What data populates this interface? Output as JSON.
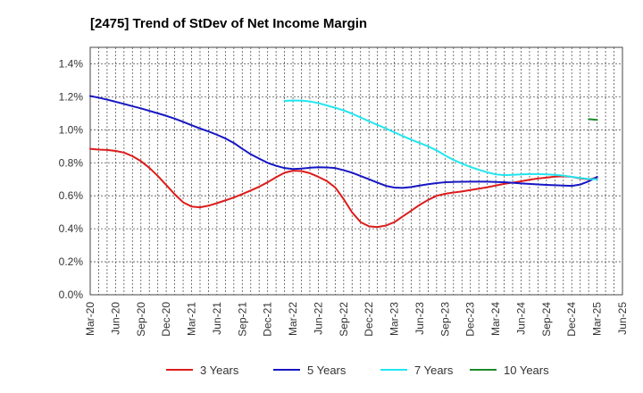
{
  "chart_data": {
    "type": "line",
    "title": "[2475]  Trend of StDev of Net Income Margin",
    "xlabel": "",
    "ylabel": "",
    "x_tick_labels": [
      "Mar-20",
      "Jun-20",
      "Sep-20",
      "Dec-20",
      "Mar-21",
      "Jun-21",
      "Sep-21",
      "Dec-21",
      "Mar-22",
      "Jun-22",
      "Sep-22",
      "Dec-22",
      "Mar-23",
      "Jun-23",
      "Sep-23",
      "Dec-23",
      "Mar-24",
      "Jun-24",
      "Sep-24",
      "Dec-24",
      "Mar-25",
      "Jun-25"
    ],
    "y_tick_labels": [
      "0.0%",
      "0.2%",
      "0.4%",
      "0.6%",
      "0.8%",
      "1.0%",
      "1.2%",
      "1.4%"
    ],
    "y_ticks": [
      0,
      0.2,
      0.4,
      0.6,
      0.8,
      1.0,
      1.2,
      1.4
    ],
    "ylim": [
      0,
      1.5
    ],
    "xlim": [
      0,
      21
    ],
    "grid": true,
    "legend_position": "bottom",
    "series": [
      {
        "name": "3 Years",
        "color": "#dd1c1c",
        "x": [
          0,
          0.33,
          0.67,
          1,
          1.33,
          1.67,
          2,
          2.33,
          2.67,
          3,
          3.33,
          3.67,
          4,
          4.33,
          4.67,
          5,
          5.33,
          5.67,
          6,
          6.33,
          6.67,
          7,
          7.33,
          7.67,
          8,
          8.33,
          8.67,
          9,
          9.33,
          9.67,
          10,
          10.33,
          10.67,
          11,
          11.33,
          11.67,
          12,
          12.33,
          12.67,
          13,
          13.33,
          13.67,
          14,
          14.33,
          14.67,
          15,
          15.33,
          15.67,
          16,
          16.33,
          16.67,
          17,
          17.33,
          17.67,
          18,
          18.33,
          18.67,
          19,
          19.33,
          19.67,
          20
        ],
        "values": [
          0.885,
          0.88,
          0.878,
          0.872,
          0.862,
          0.84,
          0.81,
          0.77,
          0.72,
          0.665,
          0.61,
          0.56,
          0.535,
          0.53,
          0.54,
          0.555,
          0.572,
          0.59,
          0.61,
          0.632,
          0.655,
          0.682,
          0.712,
          0.74,
          0.752,
          0.75,
          0.737,
          0.715,
          0.69,
          0.65,
          0.58,
          0.5,
          0.44,
          0.415,
          0.41,
          0.42,
          0.44,
          0.475,
          0.51,
          0.545,
          0.575,
          0.6,
          0.612,
          0.62,
          0.626,
          0.635,
          0.643,
          0.652,
          0.662,
          0.672,
          0.68,
          0.688,
          0.697,
          0.705,
          0.71,
          0.716,
          0.718,
          0.715,
          0.705,
          0.7,
          0.71
        ]
      },
      {
        "name": "5 Years",
        "color": "#1616c4",
        "x": [
          0,
          0.33,
          0.67,
          1,
          1.33,
          1.67,
          2,
          2.33,
          2.67,
          3,
          3.33,
          3.67,
          4,
          4.33,
          4.67,
          5,
          5.33,
          5.67,
          6,
          6.33,
          6.67,
          7,
          7.33,
          7.67,
          8,
          8.33,
          8.67,
          9,
          9.33,
          9.67,
          10,
          10.33,
          10.67,
          11,
          11.33,
          11.67,
          12,
          12.33,
          12.67,
          13,
          13.33,
          13.67,
          14,
          14.33,
          14.67,
          15,
          15.33,
          15.67,
          16,
          16.33,
          16.67,
          17,
          17.33,
          17.67,
          18,
          18.33,
          18.67,
          19,
          19.33,
          19.67,
          20
        ],
        "values": [
          1.205,
          1.195,
          1.183,
          1.17,
          1.157,
          1.143,
          1.13,
          1.115,
          1.1,
          1.085,
          1.068,
          1.048,
          1.028,
          1.008,
          0.99,
          0.97,
          0.948,
          0.92,
          0.885,
          0.852,
          0.825,
          0.8,
          0.782,
          0.768,
          0.762,
          0.765,
          0.77,
          0.773,
          0.772,
          0.768,
          0.755,
          0.74,
          0.72,
          0.7,
          0.68,
          0.66,
          0.65,
          0.648,
          0.653,
          0.662,
          0.67,
          0.677,
          0.682,
          0.684,
          0.685,
          0.686,
          0.686,
          0.686,
          0.684,
          0.682,
          0.679,
          0.675,
          0.672,
          0.669,
          0.666,
          0.664,
          0.662,
          0.66,
          0.668,
          0.688,
          0.715
        ]
      },
      {
        "name": "7 Years",
        "color": "#22e6f0",
        "x": [
          7.67,
          8,
          8.33,
          8.67,
          9,
          9.33,
          9.67,
          10,
          10.33,
          10.67,
          11,
          11.33,
          11.67,
          12,
          12.33,
          12.67,
          13,
          13.33,
          13.67,
          14,
          14.33,
          14.67,
          15,
          15.33,
          15.67,
          16,
          16.33,
          16.67,
          17,
          17.33,
          17.67,
          18,
          18.33,
          18.67,
          19,
          19.33,
          19.67,
          20
        ],
        "values": [
          1.175,
          1.178,
          1.177,
          1.172,
          1.162,
          1.148,
          1.133,
          1.118,
          1.098,
          1.075,
          1.052,
          1.03,
          1.008,
          0.985,
          0.962,
          0.94,
          0.92,
          0.9,
          0.875,
          0.845,
          0.818,
          0.795,
          0.775,
          0.758,
          0.742,
          0.73,
          0.725,
          0.727,
          0.73,
          0.732,
          0.732,
          0.73,
          0.727,
          0.722,
          0.715,
          0.708,
          0.702,
          0.7
        ]
      },
      {
        "name": "10 Years",
        "color": "#1f8a2a",
        "x": [
          19.67,
          20
        ],
        "values": [
          1.065,
          1.06
        ]
      }
    ]
  }
}
